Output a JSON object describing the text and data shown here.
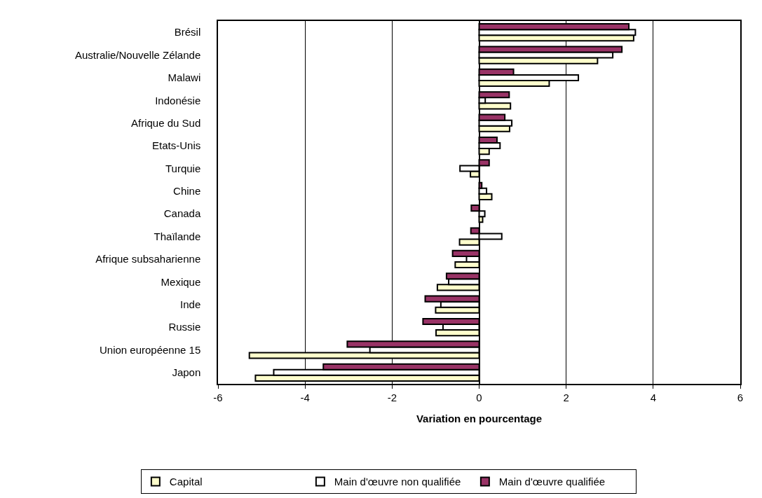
{
  "chart_data": {
    "type": "bar",
    "orientation": "horizontal",
    "xlabel": "Variation en pourcentage",
    "categories": [
      "Brésil",
      "Australie/Nouvelle Zélande",
      "Malawi",
      "Indonésie",
      "Afrique du Sud",
      "Etats-Unis",
      "Turquie",
      "Chine",
      "Canada",
      "Thaïlande",
      "Afrique subsaharienne",
      "Mexique",
      "Inde",
      "Russie",
      "Union européenne 15",
      "Japon"
    ],
    "series": [
      {
        "name": "Capital",
        "color": "#ffffcc",
        "values": [
          3.55,
          2.72,
          1.61,
          0.72,
          0.7,
          0.23,
          -0.2,
          0.29,
          0.08,
          -0.45,
          -0.55,
          -0.96,
          -1.0,
          -0.99,
          -5.28,
          -5.14
        ]
      },
      {
        "name": "Main d'œuvre non qualifiée",
        "color": "#ffffff",
        "values": [
          3.59,
          3.07,
          2.28,
          0.14,
          0.75,
          0.48,
          -0.44,
          0.17,
          0.13,
          0.52,
          -0.29,
          -0.7,
          -0.88,
          -0.83,
          -2.51,
          -4.72
        ]
      },
      {
        "name": "Main d'œuvre qualifiée",
        "color": "#993366",
        "values": [
          3.44,
          3.28,
          0.79,
          0.69,
          0.59,
          0.41,
          0.23,
          0.06,
          -0.18,
          -0.19,
          -0.61,
          -0.75,
          -1.24,
          -1.29,
          -3.03,
          -3.58
        ]
      }
    ],
    "xlim": [
      -6,
      6
    ],
    "xticks": [
      -6,
      -4,
      -2,
      0,
      2,
      4,
      6
    ],
    "grid": "x",
    "legend": "bottom"
  }
}
